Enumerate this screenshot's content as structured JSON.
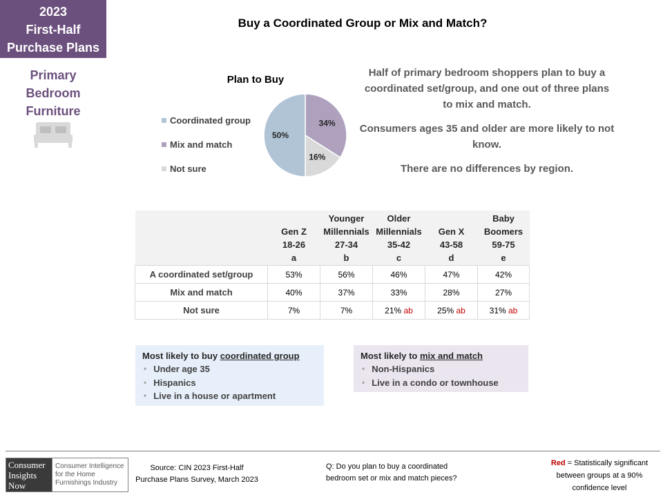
{
  "badge": {
    "line1": "2023",
    "line2": "First-Half",
    "line3": "Purchase Plans"
  },
  "category": {
    "line1": "Primary",
    "line2": "Bedroom",
    "line3": "Furniture",
    "icon": "bed-icon"
  },
  "title": "Buy a Coordinated Group or Mix and Match?",
  "chart_data": {
    "type": "pie",
    "title": "Plan to Buy",
    "categories": [
      "Coordinated group",
      "Mix and match",
      "Not sure"
    ],
    "values": [
      50,
      34,
      16
    ],
    "labels": [
      "50%",
      "34%",
      "16%"
    ],
    "colors": [
      "#b0c4d6",
      "#afa1bd",
      "#d9d9d9"
    ],
    "legend_position": "left"
  },
  "commentary": [
    "Half of primary bedroom shoppers plan to buy a coordinated set/group, and one out of three plans to mix and match.",
    "Consumers ages 35 and older are more likely to not know.",
    "There are no differences by region."
  ],
  "table": {
    "columns": [
      {
        "l1": "",
        "l2": "Gen Z",
        "l3": "18-26",
        "l4": "a"
      },
      {
        "l1": "Younger",
        "l2": "Millennials",
        "l3": "27-34",
        "l4": "b"
      },
      {
        "l1": "Older",
        "l2": "Millennials",
        "l3": "35-42",
        "l4": "c"
      },
      {
        "l1": "",
        "l2": "Gen X",
        "l3": "43-58",
        "l4": "d"
      },
      {
        "l1": "Baby",
        "l2": "Boomers",
        "l3": "59-75",
        "l4": "e"
      }
    ],
    "rows": [
      {
        "label": "A coordinated set/group",
        "cells": [
          {
            "v": "53%",
            "sig": ""
          },
          {
            "v": "56%",
            "sig": ""
          },
          {
            "v": "46%",
            "sig": ""
          },
          {
            "v": "47%",
            "sig": ""
          },
          {
            "v": "42%",
            "sig": ""
          }
        ]
      },
      {
        "label": "Mix and match",
        "cells": [
          {
            "v": "40%",
            "sig": ""
          },
          {
            "v": "37%",
            "sig": ""
          },
          {
            "v": "33%",
            "sig": ""
          },
          {
            "v": "28%",
            "sig": ""
          },
          {
            "v": "27%",
            "sig": ""
          }
        ]
      },
      {
        "label": "Not sure",
        "cells": [
          {
            "v": "7%",
            "sig": ""
          },
          {
            "v": "7%",
            "sig": ""
          },
          {
            "v": "21%",
            "sig": "ab"
          },
          {
            "v": "25%",
            "sig": "ab"
          },
          {
            "v": "31%",
            "sig": "ab"
          }
        ]
      }
    ]
  },
  "box_coordinated": {
    "title_prefix": "Most likely to buy ",
    "title_underlined": "coordinated group",
    "items": [
      "Under age 35",
      "Hispanics",
      "Live in a house or apartment"
    ]
  },
  "box_mix": {
    "title_prefix": "Most likely to ",
    "title_underlined": "mix and match",
    "items": [
      "Non-Hispanics",
      "Live in a condo or townhouse"
    ]
  },
  "footer": {
    "logo_left": {
      "l1": "Consumer",
      "l2": "Insights",
      "l3": "Now"
    },
    "logo_right": {
      "l1": "Consumer Intelligence",
      "l2": "for the Home",
      "l3": "Furnishings Industry"
    },
    "source_l1": "Source:  CIN 2023 First-Half",
    "source_l2": "Purchase Plans Survey, March 2023",
    "question_l1": "Q: Do you plan to buy a coordinated",
    "question_l2": "bedroom set or mix and match pieces?",
    "note_red": "Red",
    "note_l1": " = Statistically significant",
    "note_l2": "between  groups at a 90%",
    "note_l3": "confidence level"
  }
}
